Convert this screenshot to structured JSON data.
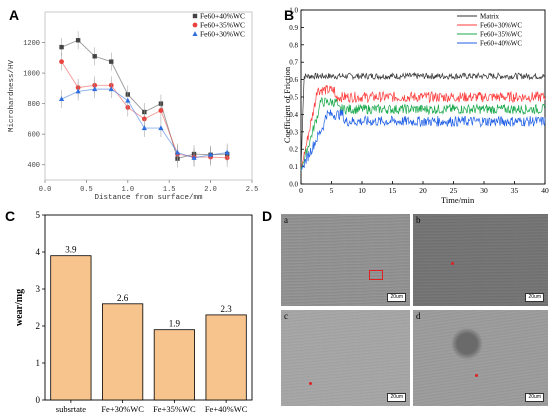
{
  "chart_data": [
    {
      "panel": "A",
      "type": "line",
      "xlabel": "Distance from surface/mm",
      "ylabel": "Microhardness/HV",
      "xlim": [
        0,
        2.5
      ],
      "ylim": [
        300,
        1400
      ],
      "xticks": [
        "0.0",
        "0.5",
        "1.0",
        "1.5",
        "2.0",
        "2.5"
      ],
      "yticks": [
        "400",
        "600",
        "800",
        "1000",
        "1200"
      ],
      "legend": "top-right",
      "series": [
        {
          "name": "Fe60+40%WC",
          "color": "#444444",
          "marker": "square",
          "x": [
            0.2,
            0.4,
            0.6,
            0.8,
            1.0,
            1.2,
            1.4,
            1.6,
            1.8,
            2.0,
            2.2
          ],
          "y": [
            1170,
            1215,
            1110,
            1075,
            860,
            745,
            800,
            440,
            470,
            465,
            470
          ]
        },
        {
          "name": "Fe60+35%WC",
          "color": "#e8433f",
          "marker": "circle",
          "x": [
            0.2,
            0.4,
            0.6,
            0.8,
            1.0,
            1.2,
            1.4,
            1.6,
            1.8,
            2.0,
            2.2
          ],
          "y": [
            1075,
            905,
            920,
            920,
            775,
            700,
            755,
            470,
            450,
            450,
            445
          ]
        },
        {
          "name": "Fe60+30%WC",
          "color": "#2f6fe0",
          "marker": "triangle",
          "x": [
            0.2,
            0.4,
            0.6,
            0.8,
            1.0,
            1.2,
            1.4,
            1.6,
            1.8,
            2.0,
            2.2
          ],
          "y": [
            830,
            880,
            895,
            895,
            820,
            640,
            640,
            480,
            445,
            465,
            480
          ]
        }
      ]
    },
    {
      "panel": "B",
      "type": "line",
      "xlabel": "Time/min",
      "ylabel": "Coefficient of Friction",
      "xlim": [
        0,
        40
      ],
      "ylim": [
        0,
        1.0
      ],
      "xticks": [
        "0",
        "5",
        "10",
        "15",
        "20",
        "25",
        "30",
        "35",
        "40"
      ],
      "yticks": [
        "0.0",
        "0.1",
        "0.2",
        "0.3",
        "0.4",
        "0.5",
        "0.6",
        "0.7",
        "0.8",
        "0.9",
        "1.0"
      ],
      "legend": "top-right",
      "series": [
        {
          "name": "Matrix",
          "color": "#333333",
          "mean": 0.62,
          "noise": 0.018,
          "rise": 0.5
        },
        {
          "name": "Fe60+30%WC",
          "color": "#ff3b3b",
          "mean": 0.5,
          "noise": 0.03,
          "rise": 2.5
        },
        {
          "name": "Fe60+35%WC",
          "color": "#18a84a",
          "mean": 0.43,
          "noise": 0.028,
          "rise": 3.0
        },
        {
          "name": "Fe60+40%WC",
          "color": "#1f5fe6",
          "mean": 0.36,
          "noise": 0.03,
          "rise": 4.0
        }
      ]
    },
    {
      "panel": "C",
      "type": "bar",
      "ylabel": "wear/mg",
      "ylim": [
        0,
        5
      ],
      "yticks": [
        "0",
        "1",
        "2",
        "3",
        "4",
        "5"
      ],
      "categories": [
        "subsrtate",
        "Fe+30%WC",
        "Fe+35%WC",
        "Fe+40%WC"
      ],
      "values": [
        3.9,
        2.6,
        1.9,
        2.3
      ],
      "value_labels": [
        "3.9",
        "2.6",
        "1.9",
        "2.3"
      ],
      "bar_color": "#f8c48e"
    }
  ],
  "panels": {
    "a": "A",
    "b": "B",
    "c": "C",
    "d": "D"
  },
  "sem": {
    "labels": [
      "a",
      "b",
      "c",
      "d"
    ],
    "scale": "20um"
  }
}
